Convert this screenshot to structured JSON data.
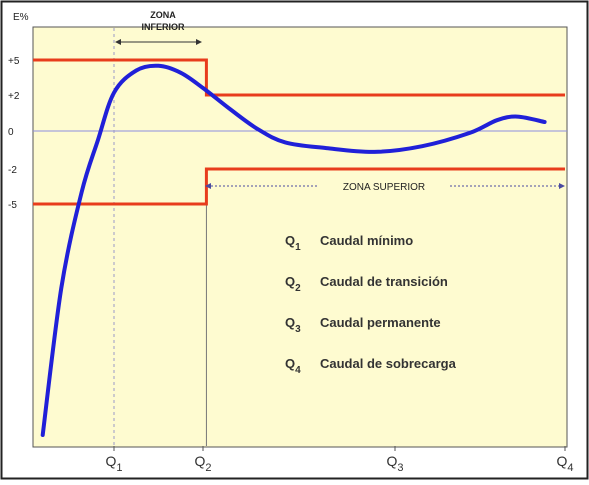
{
  "chart_data": {
    "type": "line",
    "title": "",
    "ylabel": "E%",
    "xlabel": "",
    "y_ticks": [
      "+5",
      "+2",
      "0",
      "-2",
      "-5"
    ],
    "x_ticks": [
      "Q1",
      "Q2",
      "Q3",
      "Q4"
    ],
    "zones": {
      "lower": [
        "ZONA",
        "INFERIOR"
      ],
      "upper": "ZONA SUPERIOR"
    },
    "legend": [
      {
        "sym": "Q",
        "sub": "1",
        "label": "Caudal mínimo"
      },
      {
        "sym": "Q",
        "sub": "2",
        "label": "Caudal de transición"
      },
      {
        "sym": "Q",
        "sub": "3",
        "label": "Caudal permanente"
      },
      {
        "sym": "Q",
        "sub": "4",
        "label": "Caudal de sobrecarga"
      }
    ],
    "series": [
      {
        "values": [
          [
            0.12,
            -16.0
          ],
          [
            0.35,
            -9.0
          ],
          [
            0.6,
            -4.0
          ],
          [
            0.8,
            -0.5
          ],
          [
            1.0,
            2.2
          ],
          [
            1.25,
            4.1
          ],
          [
            1.5,
            4.5
          ],
          [
            1.75,
            3.9
          ],
          [
            2.0,
            2.6
          ],
          [
            2.4,
            1.2
          ],
          [
            2.8,
            0.1
          ],
          [
            3.2,
            -0.6
          ],
          [
            3.8,
            -0.9
          ],
          [
            4.5,
            -1.1
          ],
          [
            5.2,
            -0.8
          ],
          [
            5.9,
            -0.1
          ],
          [
            6.3,
            0.6
          ],
          [
            6.6,
            0.8
          ],
          [
            7.0,
            0.5
          ]
        ]
      }
    ],
    "limit_upper": [
      [
        0,
        5
      ],
      [
        2.05,
        5
      ],
      [
        2.05,
        2
      ],
      [
        7.3,
        2
      ]
    ],
    "limit_lower": [
      [
        0,
        -5
      ],
      [
        2.05,
        -5
      ],
      [
        2.05,
        -2
      ],
      [
        7.3,
        -2
      ]
    ],
    "colors": {
      "background": "#fefbd0",
      "curve": "#2020d8",
      "limits": "#e83c1c",
      "axis": "#555555",
      "zero_line": "#8c8ce0",
      "dashed": "#9a9ac8"
    }
  }
}
